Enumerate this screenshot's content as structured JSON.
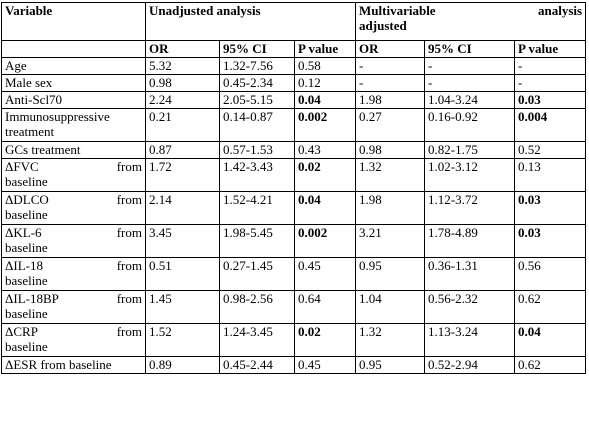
{
  "header": {
    "variable": "Variable",
    "unadjusted": "Unadjusted analysis",
    "multivariable_word1": "Multivariable",
    "multivariable_word2": "analysis",
    "multivariable_line2": "adjusted",
    "or": "OR",
    "ci": "95% CI",
    "p": "P value"
  },
  "rows": [
    {
      "var1": "Age",
      "var2": "",
      "u_or": "5.32",
      "u_ci": "1.32-7.56",
      "u_p": "0.58",
      "u_p_bold": false,
      "m_or": "-",
      "m_ci": "-",
      "m_p": "-",
      "m_p_bold": false
    },
    {
      "var1": "Male sex",
      "var2": "",
      "u_or": "0.98",
      "u_ci": "0.45-2.34",
      "u_p": "0.12",
      "u_p_bold": false,
      "m_or": "-",
      "m_ci": "-",
      "m_p": "-",
      "m_p_bold": false
    },
    {
      "var1": "Anti-Scl70",
      "var2": "",
      "u_or": "2.24",
      "u_ci": "2.05-5.15",
      "u_p": "0.04",
      "u_p_bold": true,
      "m_or": "1.98",
      "m_ci": "1.04-3.24",
      "m_p": "0.03",
      "m_p_bold": true
    },
    {
      "var1": "Immunosuppressive",
      "var2": "treatment",
      "u_or": "0.21",
      "u_ci": "0.14-0.87",
      "u_p": "0.002",
      "u_p_bold": true,
      "m_or": "0.27",
      "m_ci": "0.16-0.92",
      "m_p": "0.004",
      "m_p_bold": true
    },
    {
      "var1": "GCs treatment",
      "var2": "",
      "u_or": "0.87",
      "u_ci": "0.57-1.53",
      "u_p": "0.43",
      "u_p_bold": false,
      "m_or": "0.98",
      "m_ci": "0.82-1.75",
      "m_p": "0.52",
      "m_p_bold": false
    },
    {
      "var1": "ΔFVC",
      "var1b": "from",
      "var2": "baseline",
      "u_or": "1.72",
      "u_ci": "1.42-3.43",
      "u_p": "0.02",
      "u_p_bold": true,
      "m_or": "1.32",
      "m_ci": "1.02-3.12",
      "m_p": "0.13",
      "m_p_bold": false
    },
    {
      "var1": "ΔDLCO",
      "var1b": "from",
      "var2": "baseline",
      "u_or": "2.14",
      "u_ci": "1.52-4.21",
      "u_p": "0.04",
      "u_p_bold": true,
      "m_or": "1.98",
      "m_ci": "1.12-3.72",
      "m_p": "0.03",
      "m_p_bold": true
    },
    {
      "var1": "ΔKL-6",
      "var1b": "from",
      "var2": "baseline",
      "u_or": "3.45",
      "u_ci": "1.98-5.45",
      "u_p": "0.002",
      "u_p_bold": true,
      "m_or": "3.21",
      "m_ci": "1.78-4.89",
      "m_p": "0.03",
      "m_p_bold": true
    },
    {
      "var1": "ΔIL-18",
      "var1b": "from",
      "var2": "baseline",
      "u_or": "0.51",
      "u_ci": "0.27-1.45",
      "u_p": "0.45",
      "u_p_bold": false,
      "m_or": "0.95",
      "m_ci": "0.36-1.31",
      "m_p": "0.56",
      "m_p_bold": false
    },
    {
      "var1": "ΔIL-18BP",
      "var1b": "from",
      "var2": "baseline",
      "u_or": "1.45",
      "u_ci": "0.98-2.56",
      "u_p": "0.64",
      "u_p_bold": false,
      "m_or": "1.04",
      "m_ci": "0.56-2.32",
      "m_p": "0.62",
      "m_p_bold": false
    },
    {
      "var1": "ΔCRP",
      "var1b": "from",
      "var2": "baseline",
      "u_or": "1.52",
      "u_ci": "1.24-3.45",
      "u_p": "0.02",
      "u_p_bold": true,
      "m_or": "1.32",
      "m_ci": "1.13-3.24",
      "m_p": "0.04",
      "m_p_bold": true
    },
    {
      "var1": "ΔESR from baseline",
      "var2": "",
      "u_or": "0.89",
      "u_ci": "0.45-2.44",
      "u_p": "0.45",
      "u_p_bold": false,
      "m_or": "0.95",
      "m_ci": "0.52-2.94",
      "m_p": "0.62",
      "m_p_bold": false
    }
  ]
}
